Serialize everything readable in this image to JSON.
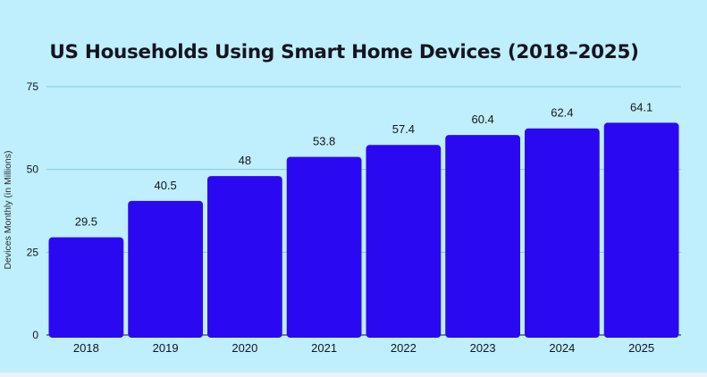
{
  "chart_data": {
    "type": "bar",
    "title": "US Households Using Smart Home Devices (2018–2025)",
    "xlabel": "",
    "ylabel": "Devices Monthly (in Millions)",
    "categories": [
      "2018",
      "2019",
      "2020",
      "2021",
      "2022",
      "2023",
      "2024",
      "2025"
    ],
    "values": [
      29.5,
      40.5,
      48,
      53.8,
      57.4,
      60.4,
      62.4,
      64.1
    ],
    "data_labels": [
      "29.5",
      "40.5",
      "48",
      "53.8",
      "57.4",
      "60.4",
      "62.4",
      "64.1"
    ],
    "ylim": [
      0,
      75
    ],
    "yticks": [
      0,
      25,
      50,
      75
    ],
    "grid": true,
    "legend": "none",
    "colors": {
      "bar": "#2a09f2",
      "background": "#bfeefc",
      "gridline": "#86c9dc",
      "text": "#14151f"
    }
  }
}
